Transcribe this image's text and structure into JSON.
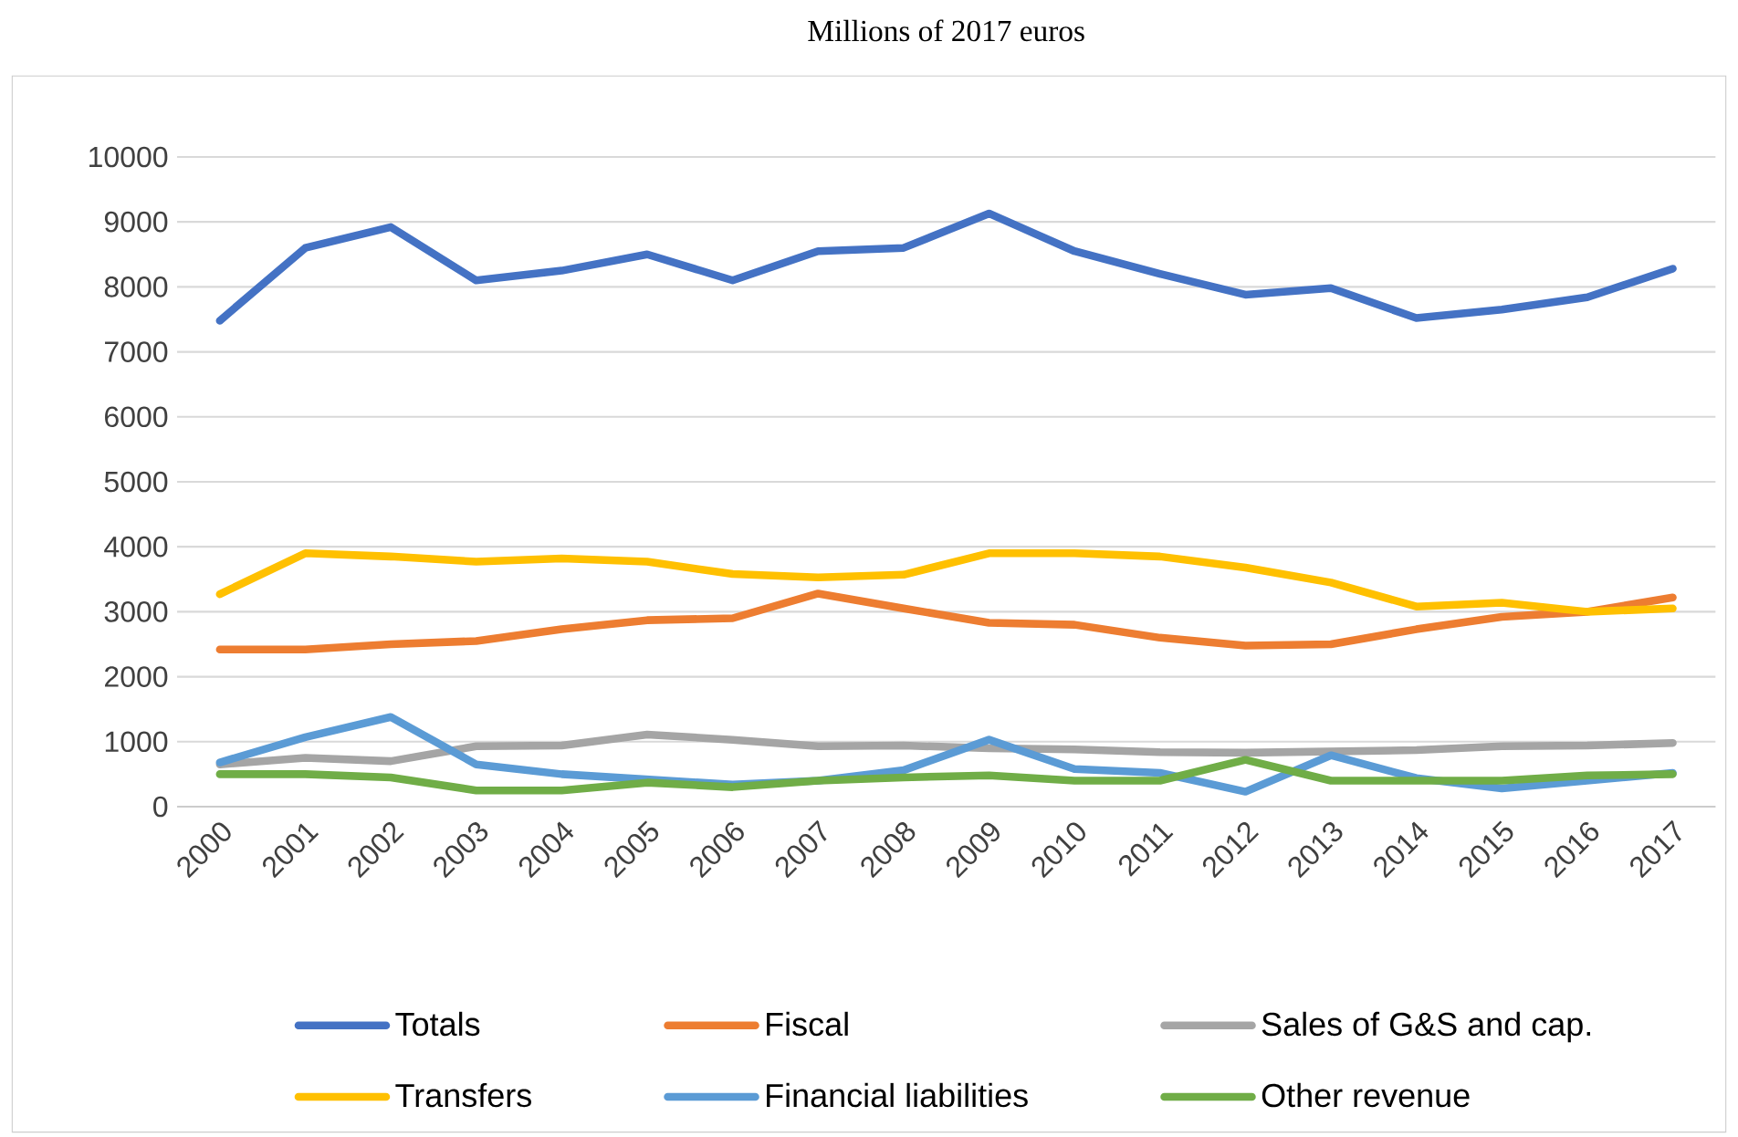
{
  "chart_data": {
    "type": "line",
    "title": "Millions of 2017 euros",
    "categories": [
      "2000",
      "2001",
      "2002",
      "2003",
      "2004",
      "2005",
      "2006",
      "2007",
      "2008",
      "2009",
      "2010",
      "2011",
      "2012",
      "2013",
      "2014",
      "2015",
      "2016",
      "2017"
    ],
    "series": [
      {
        "name": "Totals",
        "color": "#4472c4",
        "values": [
          7480,
          8600,
          8920,
          8100,
          8250,
          8500,
          8100,
          8550,
          8600,
          9130,
          8550,
          8200,
          7880,
          7980,
          7520,
          7650,
          7840,
          8280
        ]
      },
      {
        "name": "Fiscal",
        "color": "#ed7d31",
        "values": [
          2420,
          2420,
          2500,
          2550,
          2730,
          2870,
          2900,
          3280,
          3050,
          2830,
          2800,
          2600,
          2480,
          2500,
          2730,
          2920,
          3000,
          3220
        ]
      },
      {
        "name": "Sales of G&S and cap.",
        "color": "#a5a5a5",
        "values": [
          650,
          750,
          700,
          930,
          940,
          1110,
          1030,
          930,
          940,
          900,
          880,
          840,
          830,
          850,
          870,
          930,
          940,
          980
        ]
      },
      {
        "name": "Transfers",
        "color": "#ffc000",
        "values": [
          3270,
          3900,
          3850,
          3770,
          3820,
          3770,
          3580,
          3530,
          3570,
          3900,
          3900,
          3850,
          3680,
          3450,
          3080,
          3140,
          3000,
          3050
        ]
      },
      {
        "name": "Financial liabilities",
        "color": "#5b9bd5",
        "values": [
          680,
          1070,
          1380,
          650,
          500,
          420,
          340,
          400,
          560,
          1030,
          580,
          520,
          230,
          790,
          440,
          280,
          400,
          520
        ]
      },
      {
        "name": "Other revenue",
        "color": "#70ad47",
        "values": [
          500,
          500,
          450,
          250,
          250,
          370,
          300,
          400,
          450,
          480,
          400,
          400,
          720,
          400,
          400,
          400,
          480,
          500
        ]
      }
    ],
    "ylim": [
      0,
      10000
    ],
    "yticks": [
      0,
      1000,
      2000,
      3000,
      4000,
      5000,
      6000,
      7000,
      8000,
      9000,
      10000
    ],
    "grid": "y",
    "legend": "bottom",
    "marker": "none",
    "line_style": "solid"
  }
}
